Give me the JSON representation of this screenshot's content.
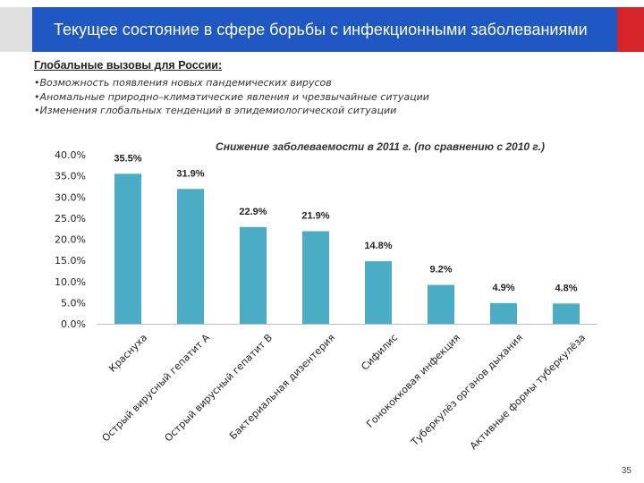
{
  "header": {
    "title": "Текущее состояние в сфере борьбы с инфекционными заболеваниями",
    "bar_color": "#1f57c3",
    "accent_color": "#d6262b"
  },
  "subtitle": "Глобальные вызовы для России:",
  "bullets": [
    "•Возможность появления новых пандемических вирусов",
    "•Аномальные природно–климатические явления и чрезвычайные ситуации",
    "•Изменения глобальных тенденций в эпидемиологической ситуации"
  ],
  "chart_data": {
    "type": "bar",
    "title": "Снижение заболеваемости в 2011 г. (по сравнению с 2010 г.)",
    "categories": [
      "Краснуха",
      "Острый вирусный гепатит А",
      "Острый вирусный гепатит В",
      "Бактериальная дизентерия",
      "Сифилис",
      "Гонококковая инфекция",
      "Туберкулёз органов дыхания",
      "Активные формы туберкулёза"
    ],
    "values": [
      35.5,
      31.9,
      22.9,
      21.9,
      14.8,
      9.2,
      4.9,
      4.8
    ],
    "data_labels": [
      "35.5%",
      "31.9%",
      "22.9%",
      "21.9%",
      "14.8%",
      "9.2%",
      "4.9%",
      "4.8%"
    ],
    "yticks": [
      "0.0%",
      "5.0%",
      "10.0%",
      "15.0%",
      "20.0%",
      "25.0%",
      "30.0%",
      "35.0%",
      "40.0%"
    ],
    "ylim": [
      0,
      40
    ],
    "xlabel": "",
    "ylabel": "",
    "bar_color": "#4bacc6",
    "grid": false
  },
  "page_number": "35"
}
